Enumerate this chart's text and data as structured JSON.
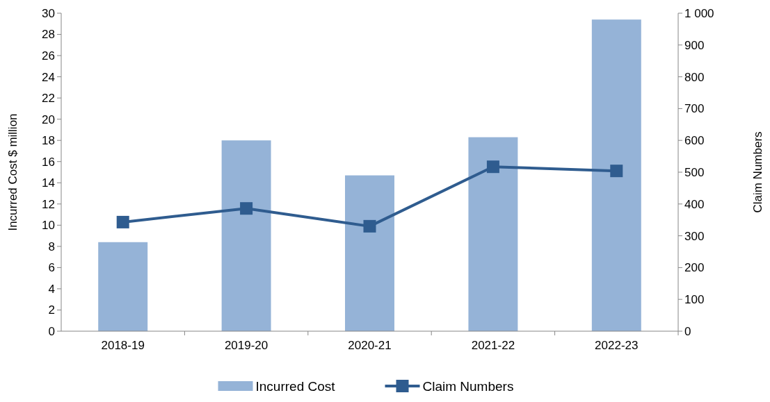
{
  "chart_data": {
    "type": "bar",
    "ylabel": "Incurred Cost $ million",
    "y2label": "Claim Numbers",
    "categories": [
      "2018-19",
      "2019-20",
      "2020-21",
      "2021-22",
      "2022-23"
    ],
    "series": [
      {
        "name": "Incurred Cost",
        "color": "#95b3d7",
        "values": [
          8.4,
          18.0,
          14.7,
          18.3,
          29.4
        ]
      },
      {
        "name": "Claim Numbers",
        "type": "line",
        "axis": "y2",
        "color": "#2f5c8f",
        "marker": "square",
        "values": [
          343,
          386,
          330,
          517,
          504
        ]
      }
    ],
    "ylim": [
      0,
      30
    ],
    "yticks": [
      0,
      2,
      4,
      6,
      8,
      10,
      12,
      14,
      16,
      18,
      20,
      22,
      24,
      26,
      28,
      30
    ],
    "y2lim": [
      0,
      1000
    ],
    "y2ticks": [
      0,
      100,
      200,
      300,
      400,
      500,
      600,
      700,
      800,
      900,
      {
        "value": 1000,
        "label": "1 000"
      }
    ],
    "grid": false,
    "legend": "bottom"
  }
}
